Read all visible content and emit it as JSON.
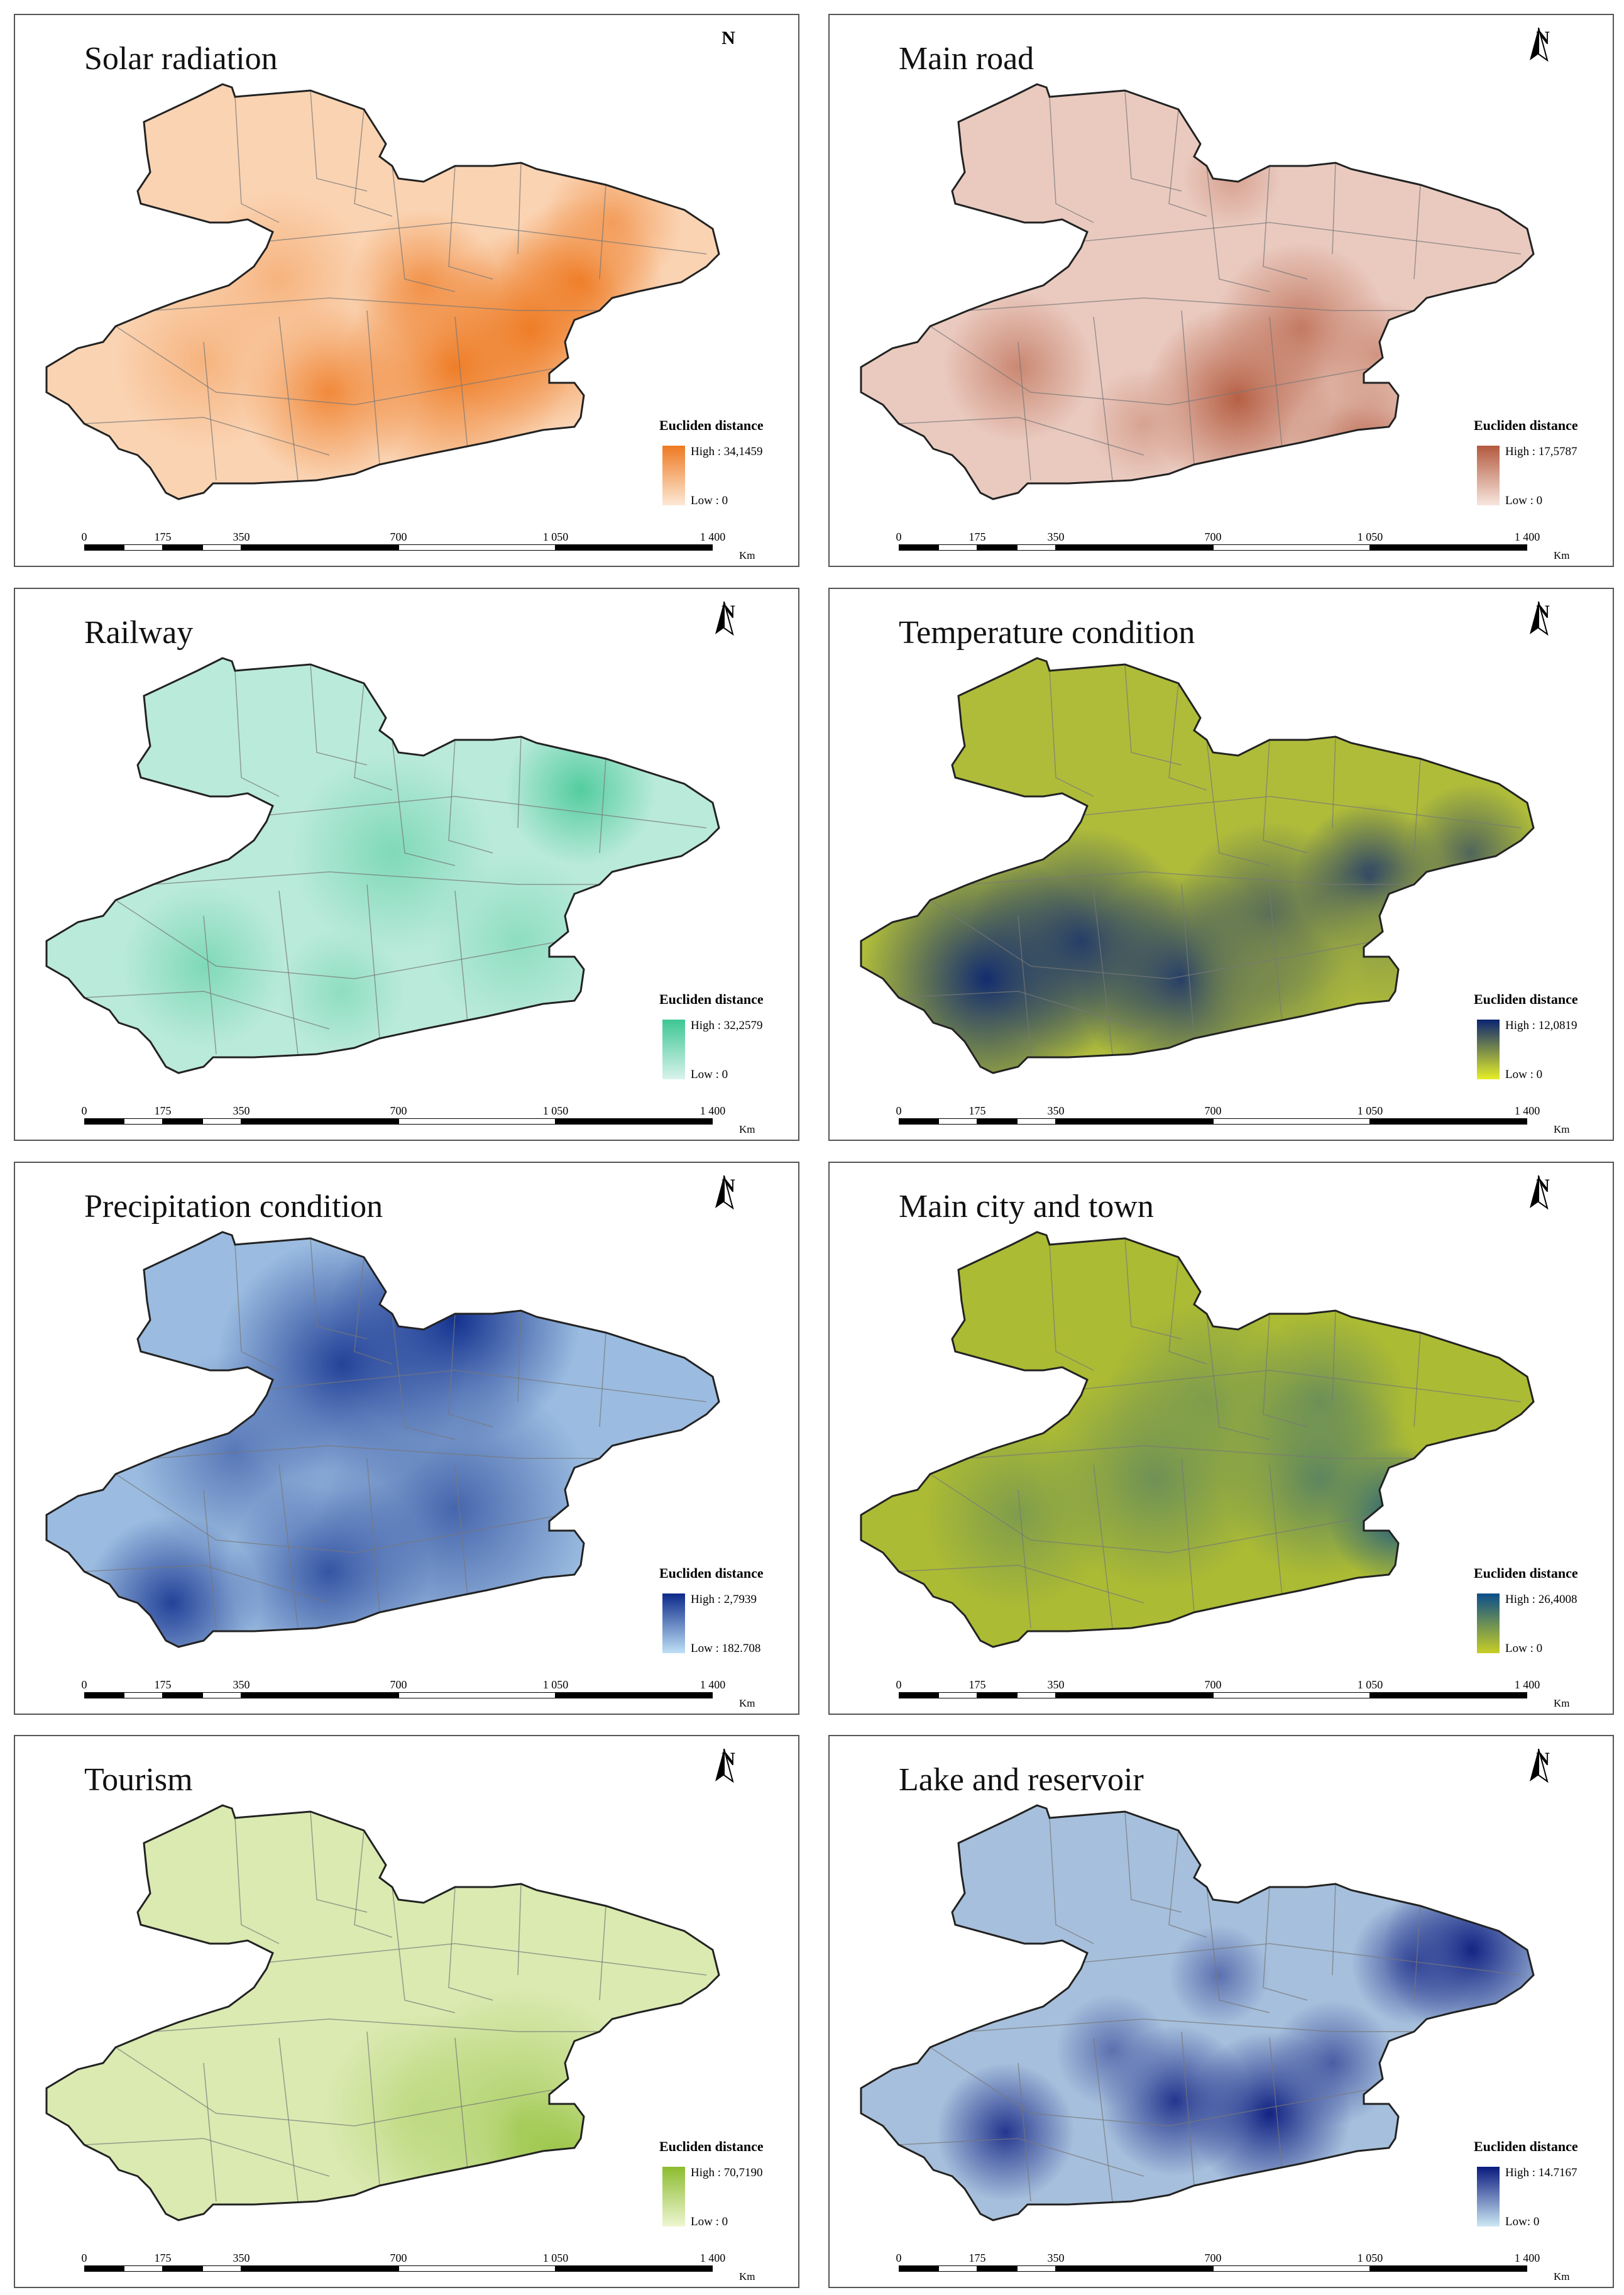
{
  "north_label": "N",
  "legend_title": "Eucliden distance",
  "scale": {
    "ticks": [
      "0",
      "175",
      "350",
      "700",
      "1 050",
      "1 400"
    ],
    "unit": "Km"
  },
  "panels": [
    {
      "title": "Solar radiation",
      "high": "High : 34,1459",
      "low": "Low : 0",
      "ramp_high": "#ee7a22",
      "ramp_low": "#fde9d6",
      "north_arrow": false
    },
    {
      "title": "Main road",
      "high": "High : 17,5787",
      "low": "Low : 0",
      "ramp_high": "#b35a3e",
      "ramp_low": "#f8e6df",
      "north_arrow": true
    },
    {
      "title": "Railway",
      "high": "High : 32,2579",
      "low": "Low : 0",
      "ramp_high": "#3ec694",
      "ramp_low": "#d9f3ec",
      "north_arrow": true
    },
    {
      "title": "Temperature condition",
      "high": "High : 12,0819",
      "low": "Low : 0",
      "ramp_high": "#0a2472",
      "ramp_low": "#e6ef27",
      "north_arrow": true
    },
    {
      "title": "Precipitation condition",
      "high": "High : 2,7939",
      "low": "Low : 182.708",
      "ramp_high": "#0c2a8a",
      "ramp_low": "#bfe1f6",
      "north_arrow": true
    },
    {
      "title": "Main city and town",
      "high": "High : 26,4008",
      "low": "Low : 0",
      "ramp_high": "#0b4e8a",
      "ramp_low": "#c8ce25",
      "north_arrow": true
    },
    {
      "title": "Tourism",
      "high": "High : 70,7190",
      "low": "Low : 0",
      "ramp_high": "#8cbc2e",
      "ramp_low": "#eef6d2",
      "north_arrow": true
    },
    {
      "title": "Lake and reservoir",
      "high": "High : 14.7167",
      "low": "Low: 0",
      "ramp_high": "#0a1a7e",
      "ramp_low": "#cde8f4",
      "north_arrow": true
    }
  ]
}
